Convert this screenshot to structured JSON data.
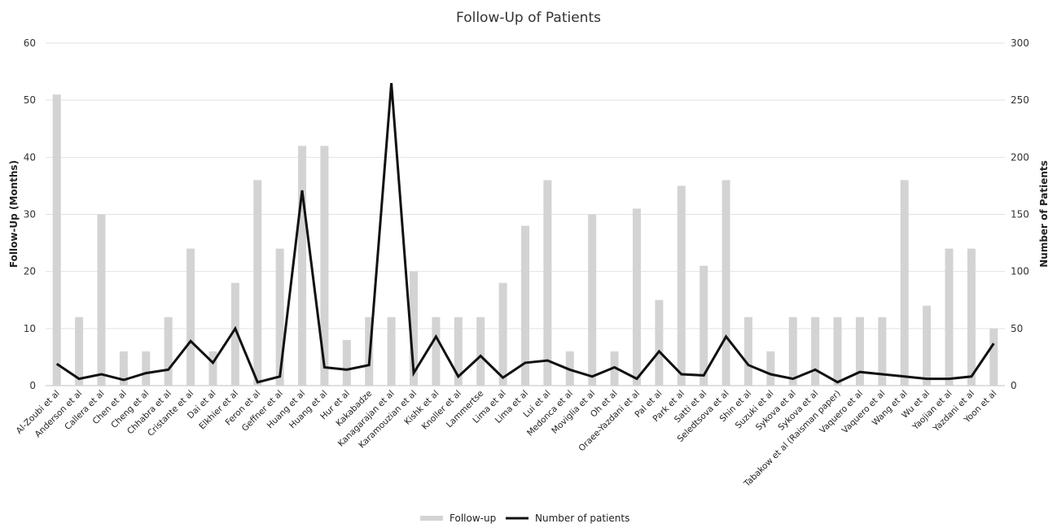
{
  "chart_data": {
    "type": "bar+line",
    "title": "Follow-Up of Patients",
    "ylabel": "Follow-Up (Months)",
    "y2label": "Number of Patients",
    "ylim": [
      0,
      60
    ],
    "y2lim": [
      0,
      300
    ],
    "yticks": [
      0,
      10,
      20,
      30,
      40,
      50,
      60
    ],
    "y2ticks": [
      0,
      50,
      100,
      150,
      200,
      250,
      300
    ],
    "grid": true,
    "legend_position": "bottom",
    "colors": {
      "bar": "#d3d3d3",
      "line": "#111111"
    },
    "categories": [
      "Al-Zoubi et al",
      "Anderson et al",
      "Callera et al",
      "Chen et al",
      "Cheng et al",
      "Chhabra et al",
      "Cristante et al",
      "Dai et al",
      "Elkhier et al",
      "Feron et al",
      "Geffner et al",
      "Huang et al",
      "Huang et al",
      "Hur et al",
      "Kakabadze",
      "Kanagarajan et al",
      "Karamouzian et al",
      "Kishk et al",
      "Knoller et al",
      "Lammertse",
      "Lima et al",
      "Lima et al",
      "Lui et al",
      "Medonca et al",
      "Moviglia et al",
      "Oh et al",
      "Oraee-Yazdani et al",
      "Pal et al",
      "Park et al",
      "Satti et al",
      "Seledtsova et al",
      "Shin et al",
      "Suzuki et al",
      "Sykova et al",
      "Sykova et al",
      "Tabakow et al (Raisman paper)",
      "Vaquero et al",
      "Vaquero et al",
      "Wang et al",
      "Wu et al",
      "Yaojian et al",
      "Yazdani et al",
      "Yoon et al"
    ],
    "series": [
      {
        "name": "Follow-up",
        "type": "bar",
        "axis": "left",
        "values": [
          51,
          12,
          30,
          6,
          6,
          12,
          24,
          6,
          18,
          36,
          24,
          42,
          42,
          8,
          12,
          12,
          20,
          12,
          12,
          12,
          18,
          28,
          36,
          6,
          30,
          6,
          31,
          15,
          35,
          21,
          36,
          12,
          6,
          12,
          12,
          12,
          12,
          12,
          36,
          14,
          24,
          24,
          10
        ]
      },
      {
        "name": "Number of patients",
        "type": "line",
        "axis": "right",
        "values": [
          19,
          6,
          10,
          5,
          11,
          14,
          39,
          20,
          50,
          3,
          8,
          171,
          16,
          14,
          18,
          265,
          11,
          43,
          8,
          26,
          7,
          20,
          22,
          14,
          8,
          16,
          6,
          30,
          10,
          9,
          43,
          18,
          10,
          6,
          14,
          3,
          12,
          10,
          8,
          6,
          6,
          8,
          37
        ]
      }
    ]
  }
}
